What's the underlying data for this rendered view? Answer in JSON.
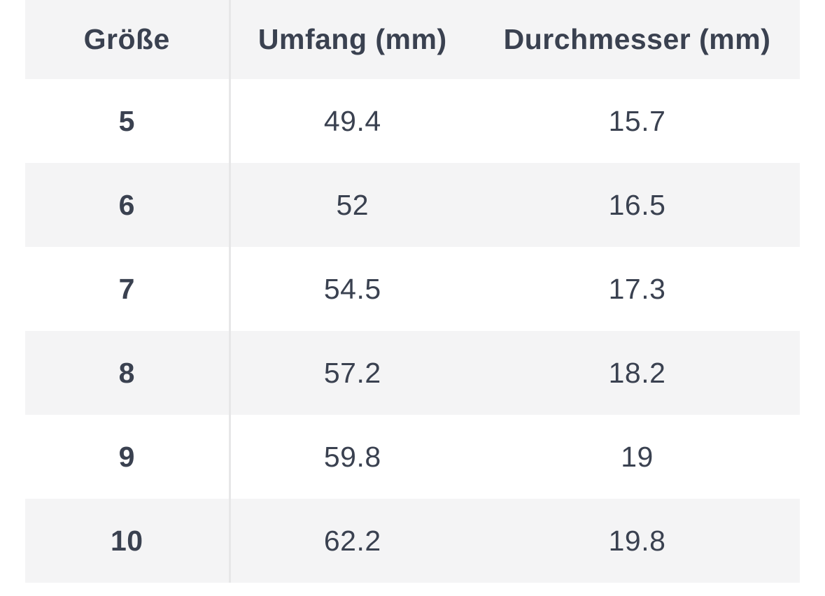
{
  "colors": {
    "page_background": "#ffffff",
    "header_background": "#f4f4f5",
    "zebra_row_background": "#f4f4f5",
    "text": "#3a4150",
    "column_divider": "#e7e7e8"
  },
  "table": {
    "headers": [
      "Größe",
      "Umfang (mm)",
      "Durchmesser (mm)"
    ],
    "rows": [
      {
        "size": "5",
        "umfang": "49.4",
        "durchmesser": "15.7"
      },
      {
        "size": "6",
        "umfang": "52",
        "durchmesser": "16.5"
      },
      {
        "size": "7",
        "umfang": "54.5",
        "durchmesser": "17.3"
      },
      {
        "size": "8",
        "umfang": "57.2",
        "durchmesser": "18.2"
      },
      {
        "size": "9",
        "umfang": "59.8",
        "durchmesser": "19"
      },
      {
        "size": "10",
        "umfang": "62.2",
        "durchmesser": "19.8"
      }
    ]
  }
}
